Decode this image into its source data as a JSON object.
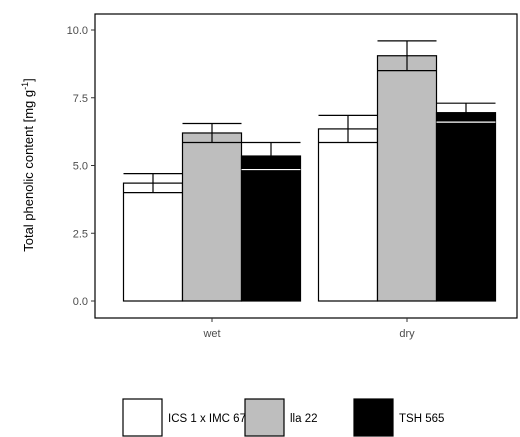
{
  "chart_data": {
    "type": "bar",
    "ylabel": "Total phenolic content  [mg g-1]",
    "ylabel_parts": {
      "main": "Total phenolic content  [mg g",
      "sup": "-1",
      "close": "]"
    },
    "categories": [
      "wet",
      "dry"
    ],
    "ylim": [
      0,
      10
    ],
    "yticks": [
      0.0,
      2.5,
      5.0,
      7.5,
      10.0
    ],
    "ytick_labels": [
      "0.0",
      "2.5",
      "5.0",
      "7.5",
      "10.0"
    ],
    "series": [
      {
        "name": "ICS 1 x IMC 67",
        "values": [
          4.35,
          6.35
        ],
        "errors": [
          0.35,
          0.5
        ],
        "color": "#ffffff"
      },
      {
        "name": "lla 22",
        "values": [
          6.2,
          9.05
        ],
        "errors": [
          0.35,
          0.55
        ],
        "color": "#bebebe"
      },
      {
        "name": "TSH 565",
        "values": [
          5.35,
          6.95
        ],
        "errors": [
          0.5,
          0.35
        ],
        "color": "#000000"
      }
    ],
    "grid": false,
    "legend_position": "bottom"
  }
}
